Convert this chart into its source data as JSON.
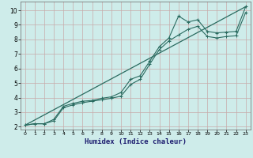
{
  "xlabel": "Humidex (Indice chaleur)",
  "bg_color": "#ceecea",
  "grid_color": "#c8aaaa",
  "line_color": "#2a6b60",
  "xlim": [
    -0.5,
    23.5
  ],
  "ylim": [
    1.8,
    10.6
  ],
  "yticks": [
    2,
    3,
    4,
    5,
    6,
    7,
    8,
    9,
    10
  ],
  "xticks": [
    0,
    1,
    2,
    3,
    4,
    5,
    6,
    7,
    8,
    9,
    10,
    11,
    12,
    13,
    14,
    15,
    16,
    17,
    18,
    19,
    20,
    21,
    22,
    23
  ],
  "line1_x": [
    0,
    1,
    2,
    3,
    4,
    5,
    6,
    7,
    8,
    9,
    10,
    11,
    12,
    13,
    14,
    15,
    16,
    17,
    18,
    19,
    20,
    21,
    22,
    23
  ],
  "line1_y": [
    2.1,
    2.2,
    2.2,
    2.5,
    3.4,
    3.6,
    3.75,
    3.8,
    3.95,
    4.05,
    4.35,
    5.25,
    5.5,
    6.5,
    7.5,
    8.1,
    9.6,
    9.2,
    9.35,
    8.55,
    8.45,
    8.5,
    8.55,
    10.25
  ],
  "line2_x": [
    0,
    1,
    2,
    3,
    4,
    5,
    6,
    7,
    8,
    9,
    10,
    11,
    12,
    13,
    14,
    15,
    16,
    17,
    18,
    19,
    20,
    21,
    22,
    23
  ],
  "line2_y": [
    2.1,
    2.2,
    2.2,
    2.4,
    3.3,
    3.5,
    3.65,
    3.75,
    3.85,
    3.95,
    4.1,
    4.9,
    5.25,
    6.3,
    7.3,
    7.9,
    8.3,
    8.7,
    8.9,
    8.2,
    8.1,
    8.2,
    8.25,
    9.85
  ],
  "line3_x": [
    0,
    23
  ],
  "line3_y": [
    2.1,
    10.25
  ]
}
